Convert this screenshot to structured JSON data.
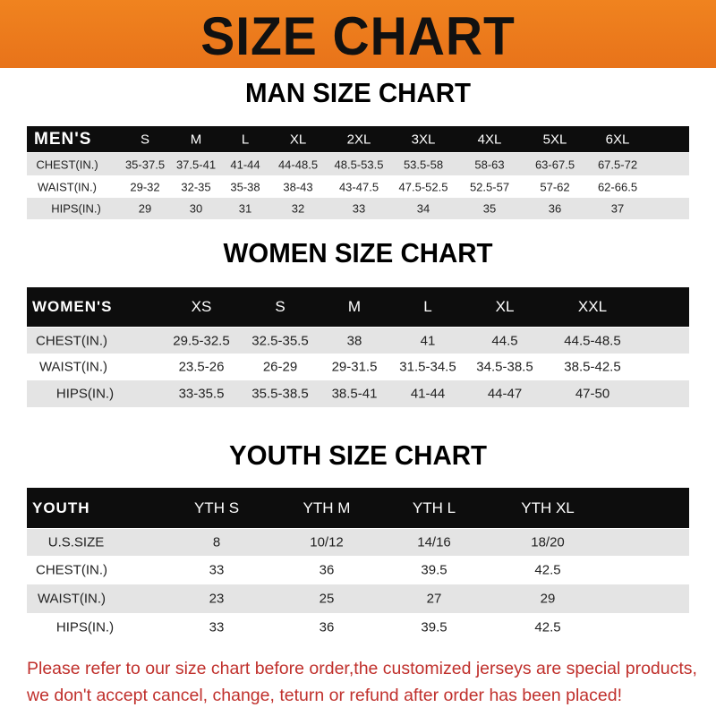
{
  "title": "SIZE CHART",
  "men": {
    "title": "MAN SIZE CHART",
    "header": [
      "MEN'S",
      "S",
      "M",
      "L",
      "XL",
      "2XL",
      "3XL",
      "4XL",
      "5XL",
      "6XL"
    ],
    "rows": [
      [
        "CHEST(IN.)",
        "35-37.5",
        "37.5-41",
        "41-44",
        "44-48.5",
        "48.5-53.5",
        "53.5-58",
        "58-63",
        "63-67.5",
        "67.5-72"
      ],
      [
        "WAIST(IN.)",
        "29-32",
        "32-35",
        "35-38",
        "38-43",
        "43-47.5",
        "47.5-52.5",
        "52.5-57",
        "57-62",
        "62-66.5"
      ],
      [
        "HIPS(IN.)",
        "29",
        "30",
        "31",
        "32",
        "33",
        "34",
        "35",
        "36",
        "37"
      ]
    ]
  },
  "women": {
    "title": "WOMEN SIZE CHART",
    "header": [
      "WOMEN'S",
      "XS",
      "S",
      "M",
      "L",
      "XL",
      "XXL"
    ],
    "rows": [
      [
        "CHEST(IN.)",
        "29.5-32.5",
        "32.5-35.5",
        "38",
        "41",
        "44.5",
        "44.5-48.5"
      ],
      [
        "WAIST(IN.)",
        "23.5-26",
        "26-29",
        "29-31.5",
        "31.5-34.5",
        "34.5-38.5",
        "38.5-42.5"
      ],
      [
        "HIPS(IN.)",
        "33-35.5",
        "35.5-38.5",
        "38.5-41",
        "41-44",
        "44-47",
        "47-50"
      ]
    ]
  },
  "youth": {
    "title": "YOUTH SIZE CHART",
    "header": [
      "YOUTH",
      "YTH S",
      "YTH M",
      "YTH L",
      "YTH XL"
    ],
    "rows": [
      [
        "U.S.SIZE",
        "8",
        "10/12",
        "14/16",
        "18/20"
      ],
      [
        "CHEST(IN.)",
        "33",
        "36",
        "39.5",
        "42.5"
      ],
      [
        "WAIST(IN.)",
        "23",
        "25",
        "27",
        "29"
      ],
      [
        "HIPS(IN.)",
        "33",
        "36",
        "39.5",
        "42.5"
      ]
    ]
  },
  "notice": [
    "Please refer to our size chart before order,the customized jerseys are special products,",
    "we don't accept cancel, change, teturn or refund after order has been placed!"
  ],
  "colors": {
    "banner": "#ec7a1d",
    "header_row": "#0d0d0d",
    "stripe": "#e4e4e4",
    "notice": "#c0302c"
  }
}
